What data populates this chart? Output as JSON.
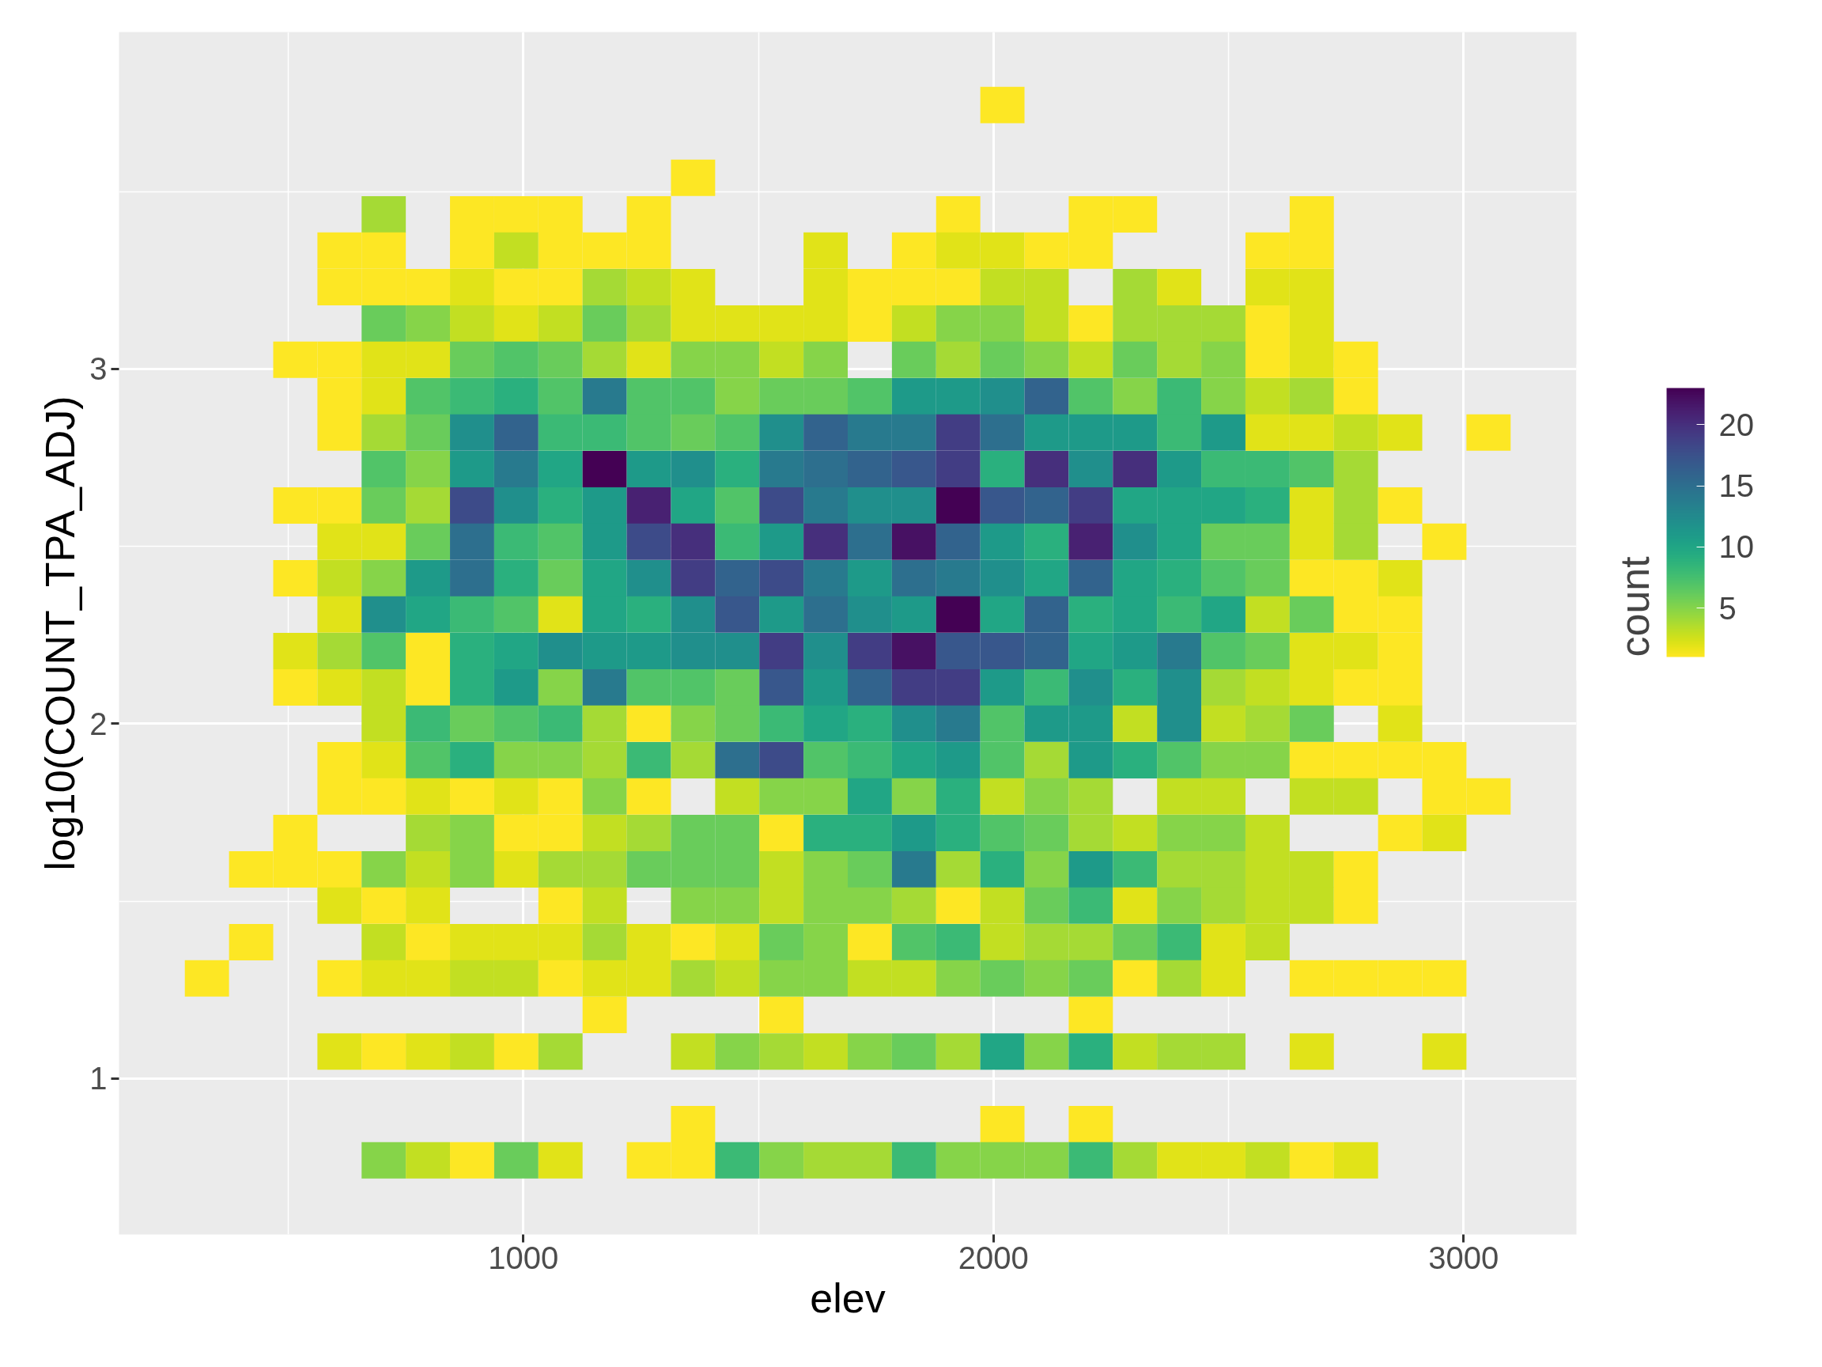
{
  "chart_data": {
    "type": "heatmap",
    "xlabel": "elev",
    "ylabel": "log10(COUNT_TPA_ADJ)",
    "clabel": "count",
    "x": [
      327,
      421,
      515,
      609,
      703,
      797,
      891,
      985,
      1079,
      1173,
      1267,
      1361,
      1455,
      1549,
      1643,
      1737,
      1831,
      1925,
      2019,
      2113,
      2207,
      2301,
      2395,
      2489,
      2583,
      2677,
      2771,
      2865,
      2959,
      3053
    ],
    "y": [
      3.744,
      3.539,
      3.436,
      3.334,
      3.231,
      3.128,
      3.026,
      2.923,
      2.821,
      2.718,
      2.615,
      2.513,
      2.41,
      2.308,
      2.205,
      2.102,
      2.0,
      1.897,
      1.795,
      1.692,
      1.589,
      1.487,
      1.384,
      1.282,
      1.179,
      1.076,
      0.871,
      0.769
    ],
    "cells": [
      [
        null,
        null,
        null,
        null,
        null,
        null,
        null,
        null,
        null,
        null,
        null,
        null,
        null,
        null,
        null,
        null,
        null,
        null,
        1,
        null,
        null,
        null,
        null,
        null,
        null,
        null,
        null,
        null,
        null,
        null
      ],
      [
        null,
        null,
        null,
        null,
        null,
        null,
        null,
        null,
        null,
        null,
        null,
        1,
        null,
        null,
        null,
        null,
        null,
        null,
        null,
        null,
        null,
        null,
        null,
        null,
        null,
        null,
        null,
        null,
        null,
        null
      ],
      [
        null,
        null,
        null,
        null,
        4,
        null,
        1,
        1,
        1,
        null,
        1,
        null,
        null,
        null,
        null,
        null,
        null,
        1,
        null,
        null,
        1,
        1,
        null,
        null,
        null,
        1,
        null,
        null,
        null,
        null
      ],
      [
        null,
        null,
        null,
        1,
        1,
        null,
        1,
        3,
        1,
        1,
        1,
        null,
        null,
        null,
        2,
        null,
        1,
        2,
        2,
        1,
        1,
        null,
        null,
        null,
        1,
        1,
        null,
        null,
        null,
        null
      ],
      [
        null,
        null,
        null,
        1,
        1,
        1,
        2,
        1,
        1,
        4,
        3,
        2,
        null,
        null,
        2,
        1,
        1,
        1,
        3,
        3,
        null,
        4,
        2,
        null,
        2,
        2,
        null,
        null,
        null,
        null
      ],
      [
        null,
        null,
        null,
        null,
        6,
        5,
        3,
        2,
        3,
        6,
        4,
        2,
        2,
        2,
        2,
        1,
        3,
        5,
        5,
        3,
        1,
        4,
        4,
        4,
        1,
        2,
        null,
        null,
        null,
        null
      ],
      [
        null,
        null,
        1,
        1,
        2,
        2,
        6,
        7,
        6,
        4,
        2,
        5,
        5,
        3,
        5,
        null,
        6,
        4,
        6,
        5,
        3,
        6,
        4,
        5,
        1,
        2,
        1,
        null,
        null,
        null
      ],
      [
        null,
        null,
        null,
        1,
        2,
        7,
        8,
        9,
        7,
        14,
        7,
        7,
        5,
        6,
        6,
        7,
        11,
        11,
        12,
        16,
        7,
        5,
        8,
        5,
        3,
        4,
        1,
        null,
        null,
        null
      ],
      [
        null,
        null,
        null,
        1,
        4,
        6,
        12,
        16,
        8,
        8,
        7,
        6,
        7,
        12,
        16,
        14,
        14,
        19,
        15,
        11,
        11,
        11,
        8,
        11,
        2,
        2,
        3,
        2,
        null,
        1
      ],
      [
        null,
        null,
        null,
        null,
        7,
        5,
        11,
        14,
        10,
        23,
        11,
        12,
        9,
        14,
        15,
        16,
        17,
        19,
        9,
        20,
        12,
        20,
        11,
        8,
        8,
        7,
        4,
        null,
        null,
        null
      ],
      [
        null,
        null,
        1,
        1,
        6,
        4,
        18,
        12,
        9,
        11,
        21,
        10,
        7,
        18,
        14,
        12,
        12,
        23,
        17,
        16,
        19,
        10,
        10,
        10,
        9,
        2,
        4,
        1,
        null,
        null
      ],
      [
        null,
        null,
        null,
        2,
        2,
        6,
        15,
        8,
        7,
        11,
        18,
        20,
        8,
        11,
        20,
        15,
        22,
        16,
        11,
        9,
        21,
        12,
        10,
        6,
        6,
        2,
        4,
        null,
        1,
        null
      ],
      [
        null,
        null,
        1,
        3,
        5,
        11,
        15,
        9,
        6,
        10,
        12,
        19,
        16,
        18,
        14,
        11,
        15,
        14,
        12,
        10,
        16,
        10,
        9,
        7,
        6,
        1,
        1,
        2,
        null,
        null
      ],
      [
        null,
        null,
        null,
        2,
        12,
        10,
        8,
        7,
        2,
        10,
        9,
        12,
        17,
        11,
        15,
        12,
        11,
        23,
        10,
        16,
        9,
        10,
        8,
        10,
        3,
        6,
        1,
        1,
        null,
        null
      ],
      [
        null,
        null,
        2,
        4,
        7,
        1,
        9,
        10,
        12,
        11,
        11,
        12,
        12,
        19,
        12,
        19,
        22,
        17,
        17,
        16,
        10,
        11,
        14,
        7,
        6,
        2,
        2,
        1,
        null,
        null
      ],
      [
        null,
        null,
        1,
        2,
        3,
        1,
        9,
        11,
        5,
        14,
        7,
        7,
        6,
        17,
        11,
        16,
        19,
        19,
        11,
        8,
        12,
        9,
        12,
        4,
        3,
        2,
        1,
        1,
        null,
        null
      ],
      [
        null,
        null,
        null,
        null,
        3,
        8,
        6,
        7,
        8,
        4,
        1,
        5,
        6,
        8,
        10,
        9,
        12,
        14,
        7,
        11,
        11,
        3,
        12,
        3,
        4,
        6,
        null,
        2,
        null,
        null
      ],
      [
        null,
        null,
        null,
        1,
        2,
        7,
        9,
        5,
        5,
        4,
        8,
        4,
        15,
        18,
        7,
        8,
        10,
        11,
        7,
        4,
        11,
        9,
        7,
        5,
        5,
        1,
        1,
        1,
        1,
        null
      ],
      [
        null,
        null,
        null,
        1,
        1,
        2,
        1,
        2,
        1,
        5,
        1,
        null,
        3,
        5,
        5,
        10,
        5,
        9,
        3,
        5,
        4,
        null,
        3,
        3,
        null,
        3,
        3,
        null,
        1,
        1
      ],
      [
        null,
        null,
        1,
        null,
        null,
        4,
        5,
        1,
        1,
        3,
        4,
        6,
        6,
        1,
        9,
        9,
        11,
        9,
        7,
        6,
        4,
        3,
        5,
        5,
        3,
        null,
        null,
        1,
        2,
        null
      ],
      [
        null,
        1,
        1,
        1,
        5,
        3,
        5,
        2,
        4,
        4,
        6,
        6,
        6,
        3,
        5,
        6,
        14,
        4,
        9,
        5,
        11,
        8,
        4,
        4,
        3,
        3,
        1,
        null,
        null,
        null
      ],
      [
        null,
        null,
        null,
        2,
        1,
        2,
        null,
        null,
        1,
        3,
        null,
        5,
        5,
        3,
        5,
        5,
        4,
        1,
        3,
        6,
        8,
        2,
        5,
        4,
        3,
        3,
        1,
        null,
        null,
        null
      ],
      [
        null,
        1,
        null,
        null,
        3,
        1,
        2,
        2,
        2,
        4,
        2,
        1,
        2,
        6,
        5,
        1,
        7,
        8,
        3,
        4,
        4,
        6,
        8,
        2,
        3,
        null,
        null,
        null,
        null,
        null
      ],
      [
        1,
        null,
        null,
        1,
        2,
        2,
        3,
        3,
        1,
        2,
        2,
        4,
        3,
        5,
        5,
        3,
        3,
        5,
        6,
        5,
        6,
        1,
        4,
        2,
        null,
        1,
        1,
        1,
        1,
        null
      ],
      [
        null,
        null,
        null,
        null,
        null,
        null,
        null,
        null,
        null,
        1,
        null,
        null,
        null,
        1,
        null,
        null,
        null,
        null,
        null,
        null,
        1,
        null,
        null,
        null,
        null,
        null,
        null,
        null,
        null,
        null
      ],
      [
        null,
        null,
        null,
        2,
        1,
        2,
        3,
        1,
        4,
        null,
        null,
        3,
        5,
        4,
        3,
        5,
        6,
        4,
        10,
        5,
        9,
        3,
        4,
        4,
        null,
        2,
        null,
        null,
        2,
        null
      ],
      [
        null,
        null,
        null,
        null,
        null,
        null,
        null,
        null,
        null,
        null,
        null,
        1,
        null,
        null,
        null,
        null,
        null,
        null,
        1,
        null,
        1,
        null,
        null,
        null,
        null,
        null,
        null,
        null,
        null,
        null
      ],
      [
        null,
        null,
        null,
        null,
        5,
        3,
        1,
        6,
        2,
        null,
        1,
        1,
        8,
        5,
        4,
        4,
        8,
        5,
        5,
        5,
        8,
        4,
        2,
        2,
        3,
        1,
        2,
        null,
        null,
        null
      ]
    ],
    "clim": [
      1,
      23
    ],
    "cticks": [
      5,
      10,
      15,
      20
    ],
    "xlim": [
      140,
      3240
    ],
    "ylim": [
      0.56,
      3.95
    ],
    "xticks": [
      1000,
      2000,
      3000
    ],
    "yticks": [
      1,
      2,
      3
    ],
    "grid": true
  }
}
